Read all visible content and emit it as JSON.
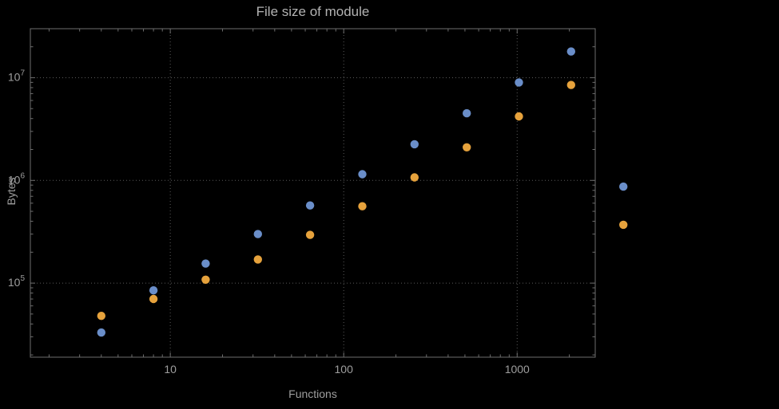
{
  "chart_data": {
    "type": "scatter",
    "title": "File size of module",
    "xlabel": "Functions",
    "ylabel": "Bytes",
    "x_scale": "log",
    "y_scale": "log",
    "x_range": [
      1.56,
      2820
    ],
    "y_range": [
      19000,
      30000000
    ],
    "x_major_ticks": [
      10,
      100,
      1000
    ],
    "x_major_tick_labels": [
      "10",
      "100",
      "1000"
    ],
    "y_major_ticks": [
      100000,
      1000000,
      10000000
    ],
    "y_major_tick_labels": [
      "10^5",
      "10^6",
      "10^7"
    ],
    "grid": "dotted-major",
    "legend": "none",
    "x": [
      4,
      8,
      16,
      32,
      64,
      128,
      256,
      512,
      1024,
      2048,
      4096
    ],
    "series": [
      {
        "name": "blue-series",
        "color": "#6a8ec9",
        "values": [
          33000,
          85000,
          155000,
          300000,
          570000,
          1150000,
          2250000,
          4500000,
          9000000,
          18000000,
          870000
        ]
      },
      {
        "name": "orange-series",
        "color": "#e6a23c",
        "values": [
          48000,
          70000,
          108000,
          170000,
          295000,
          560000,
          1070000,
          2100000,
          4200000,
          8500000,
          370000
        ]
      }
    ]
  },
  "colors": {
    "background": "#000000",
    "frame": "#6e6e6e",
    "grid": "#5a5a5a",
    "text": "#9e9e9e",
    "title_text": "#b3b3b3"
  }
}
